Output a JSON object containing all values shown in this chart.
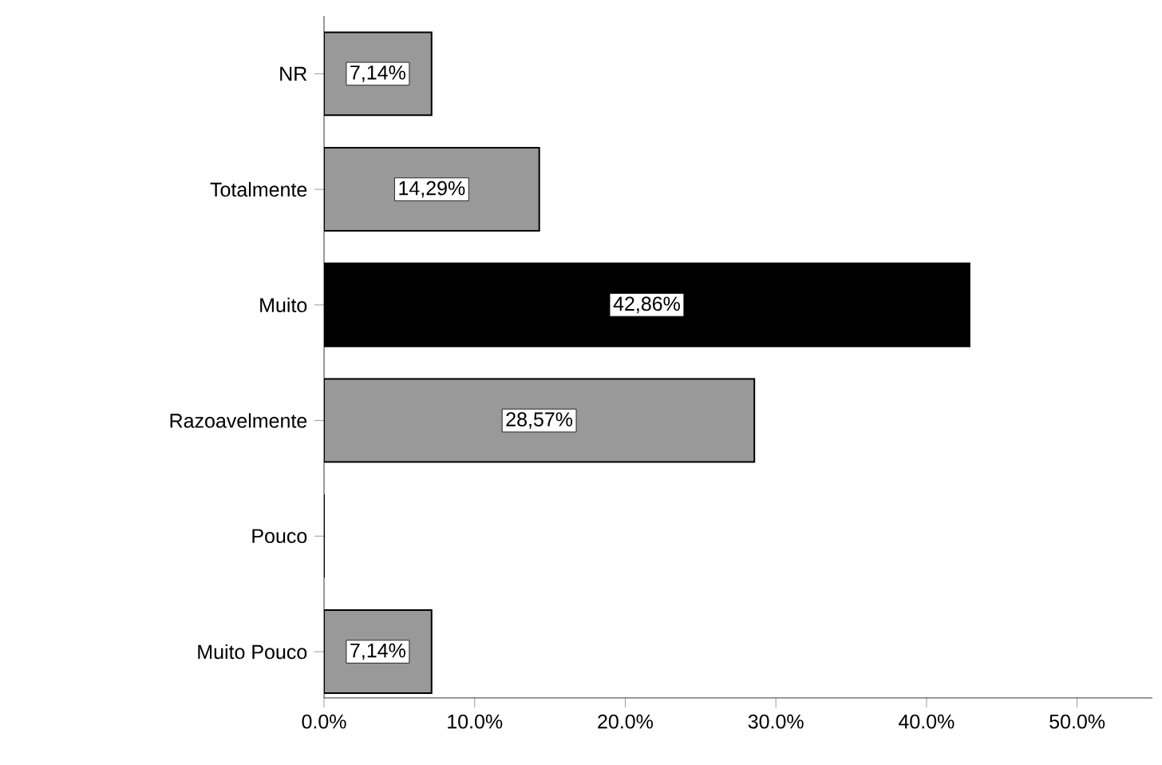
{
  "chart_data": {
    "type": "bar",
    "orientation": "horizontal",
    "categories": [
      "NR",
      "Totalmente",
      "Muito",
      "Razoavelmente",
      "Pouco",
      "Muito Pouco"
    ],
    "values": [
      7.14,
      14.29,
      42.86,
      28.57,
      0,
      7.14
    ],
    "colors": [
      "#999999",
      "#999999",
      "#000000",
      "#999999",
      "#999999",
      "#999999"
    ],
    "value_labels": [
      "7,14%",
      "14,29%",
      "42,86%",
      "28,57%",
      null,
      "7,14%"
    ],
    "xlim": [
      0,
      55
    ],
    "xticks": [
      {
        "value": 0,
        "label": "0.0%"
      },
      {
        "value": 10,
        "label": "10.0%"
      },
      {
        "value": 20,
        "label": "20.0%"
      },
      {
        "value": 30,
        "label": "30.0%"
      },
      {
        "value": 40,
        "label": "40.0%"
      },
      {
        "value": 50,
        "label": "50.0%"
      }
    ],
    "grid": false
  }
}
